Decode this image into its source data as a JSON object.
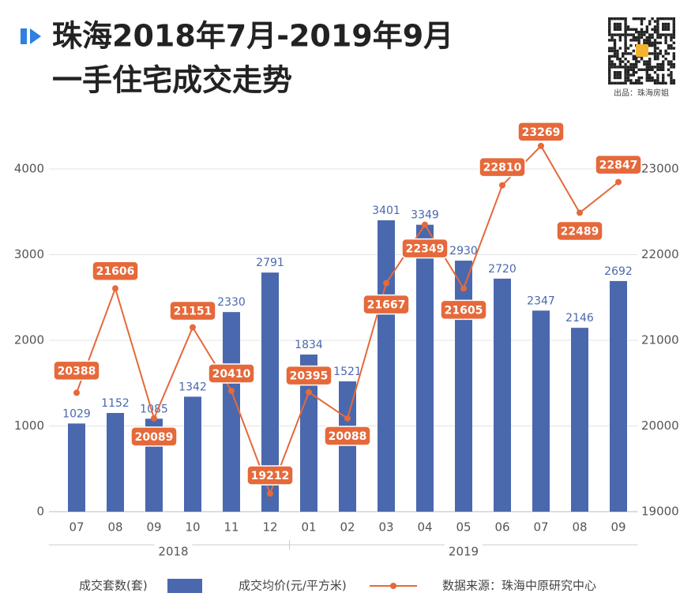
{
  "chart_data": {
    "type": "bar",
    "title_lines": [
      "珠海2018年7月-2019年9月",
      "一手住宅成交走势"
    ],
    "qr_caption": "出品：珠海房姐",
    "categories": [
      "07",
      "08",
      "09",
      "10",
      "11",
      "12",
      "01",
      "02",
      "03",
      "04",
      "05",
      "06",
      "07",
      "08",
      "09"
    ],
    "groups": [
      {
        "name": "2018",
        "count": 6
      },
      {
        "name": "2019",
        "count": 9
      }
    ],
    "series": [
      {
        "name": "成交套数(套)",
        "kind": "bar",
        "color": "#4a68ad",
        "values": [
          1029,
          1152,
          1085,
          1342,
          2330,
          2791,
          1834,
          1521,
          3401,
          3349,
          2930,
          2720,
          2347,
          2146,
          2692
        ]
      },
      {
        "name": "成交均价(元/平方米)",
        "kind": "line",
        "axis": "y2",
        "color": "#e5693a",
        "values": [
          20388,
          21606,
          20089,
          21151,
          20410,
          19212,
          20395,
          20088,
          21667,
          22349,
          21605,
          22810,
          23269,
          22489,
          22847
        ]
      }
    ],
    "ylim": [
      0,
      4400
    ],
    "yticks": [
      0,
      1000,
      2000,
      3000,
      4000
    ],
    "y2lim": [
      19000,
      23400
    ],
    "y2ticks": [
      19000,
      20000,
      21000,
      22000,
      23000
    ],
    "grid": true,
    "source": "数据来源：珠海中原研究中心"
  }
}
